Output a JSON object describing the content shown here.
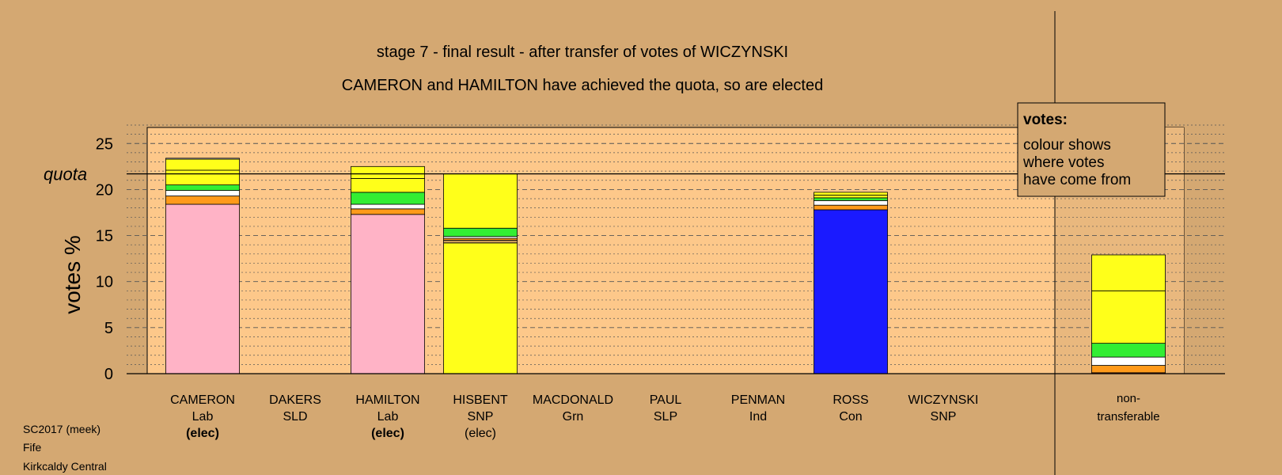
{
  "chart_data": {
    "type": "bar",
    "stacked": true,
    "title": "stage 7 - final result - after transfer of votes of WICZYNSKI",
    "subtitle": "CAMERON and HAMILTON have achieved the quota, so are elected",
    "ylabel": "votes %",
    "ylim": [
      0,
      27
    ],
    "yticks": [
      0,
      5,
      10,
      15,
      20,
      25
    ],
    "quota": 21.7,
    "quota_label": "quota",
    "grid": true,
    "legend": {
      "title": "votes:",
      "lines": [
        "colour shows",
        "where votes",
        "have come from"
      ],
      "placement": "top-right"
    },
    "candidates": [
      {
        "name": "CAMERON",
        "party": "Lab",
        "status": "(elec)",
        "status_bold": true,
        "segments": [
          {
            "value": 18.4,
            "color": "#ffb3c6"
          },
          {
            "value": 0.9,
            "color": "#ff9a1a"
          },
          {
            "value": 0.6,
            "color": "#ffffff"
          },
          {
            "value": 0.6,
            "color": "#33ee33"
          },
          {
            "value": 1.6,
            "color": "#ffff1a"
          },
          {
            "value": 1.2,
            "color": "#ffff1a"
          },
          {
            "value": 0.1,
            "color": "#ffffff"
          }
        ]
      },
      {
        "name": "DAKERS",
        "party": "SLD",
        "status": "",
        "status_bold": false,
        "segments": []
      },
      {
        "name": "HAMILTON",
        "party": "Lab",
        "status": "(elec)",
        "status_bold": true,
        "segments": [
          {
            "value": 17.3,
            "color": "#ffb3c6"
          },
          {
            "value": 0.6,
            "color": "#ff9a1a"
          },
          {
            "value": 0.5,
            "color": "#ffffff"
          },
          {
            "value": 1.3,
            "color": "#33ee33"
          },
          {
            "value": 1.5,
            "color": "#ffff1a"
          },
          {
            "value": 1.3,
            "color": "#ffff1a"
          }
        ]
      },
      {
        "name": "HISBENT",
        "party": "SNP",
        "status": "(elec)",
        "status_bold": false,
        "segments": [
          {
            "value": 14.2,
            "color": "#ffff1a"
          },
          {
            "value": 0.3,
            "color": "#c79a5a"
          },
          {
            "value": 0.2,
            "color": "#ff9a1a"
          },
          {
            "value": 0.2,
            "color": "#ffffff"
          },
          {
            "value": 0.9,
            "color": "#33ee33"
          },
          {
            "value": 5.9,
            "color": "#ffff1a"
          }
        ]
      },
      {
        "name": "MACDONALD",
        "party": "Grn",
        "status": "",
        "status_bold": false,
        "segments": []
      },
      {
        "name": "PAUL",
        "party": "SLP",
        "status": "",
        "status_bold": false,
        "segments": []
      },
      {
        "name": "PENMAN",
        "party": "Ind",
        "status": "",
        "status_bold": false,
        "segments": []
      },
      {
        "name": "ROSS",
        "party": "Con",
        "status": "",
        "status_bold": false,
        "segments": [
          {
            "value": 17.8,
            "color": "#1a1aff"
          },
          {
            "value": 0.5,
            "color": "#ff9a1a"
          },
          {
            "value": 0.5,
            "color": "#ffffff"
          },
          {
            "value": 0.3,
            "color": "#33ee33"
          },
          {
            "value": 0.3,
            "color": "#ffff1a"
          },
          {
            "value": 0.3,
            "color": "#ffff1a"
          }
        ]
      },
      {
        "name": "WICZYNSKI",
        "party": "SNP",
        "status": "",
        "status_bold": false,
        "segments": []
      }
    ],
    "nontransferable": {
      "label_line1": "non-",
      "label_line2": "transferable",
      "segments": [
        {
          "value": 0.1,
          "color": "#cc2222"
        },
        {
          "value": 0.8,
          "color": "#ff9a1a"
        },
        {
          "value": 0.9,
          "color": "#ffffff"
        },
        {
          "value": 1.5,
          "color": "#33ee33"
        },
        {
          "value": 5.7,
          "color": "#ffff1a"
        },
        {
          "value": 3.9,
          "color": "#ffff1a"
        }
      ]
    },
    "colors": {
      "background": "#d4a872",
      "plot_area": "#fdc88a",
      "legend_box": "#d4a872"
    }
  },
  "footer": [
    "SC2017 (meek)",
    "Fife",
    "Kirkcaldy Central"
  ]
}
